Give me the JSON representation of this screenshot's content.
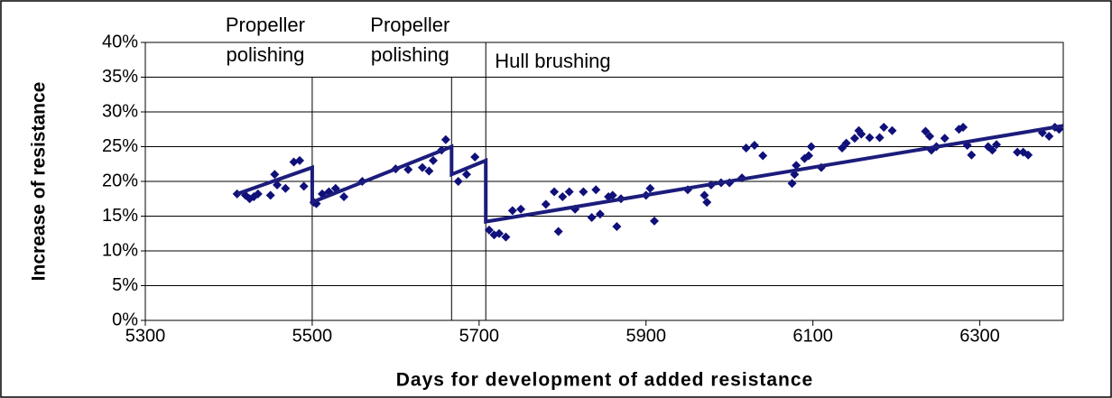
{
  "chart_data": {
    "type": "scatter",
    "xlabel": "Days for development of added resistance",
    "ylabel": "Increase of resistance",
    "xlim": [
      5300,
      6400
    ],
    "xticks": [
      5300,
      5500,
      5700,
      5900,
      6100,
      6300
    ],
    "ylim": [
      0,
      40
    ],
    "yticks": [
      {
        "value": 0,
        "label": "0%"
      },
      {
        "value": 5,
        "label": "5%"
      },
      {
        "value": 10,
        "label": "10%"
      },
      {
        "value": 15,
        "label": "15%"
      },
      {
        "value": 20,
        "label": "20%"
      },
      {
        "value": 25,
        "label": "25%"
      },
      {
        "value": 30,
        "label": "30%"
      },
      {
        "value": 35,
        "label": "35%"
      },
      {
        "value": 40,
        "label": "40%"
      }
    ],
    "grid": true,
    "points": {
      "color": "#10107a",
      "x": [
        5410,
        5420,
        5425,
        5430,
        5435,
        5450,
        5455,
        5458,
        5468,
        5478,
        5485,
        5490,
        5502,
        5505,
        5512,
        5520,
        5528,
        5538,
        5560,
        5600,
        5615,
        5632,
        5640,
        5645,
        5655,
        5660,
        5675,
        5685,
        5695,
        5712,
        5718,
        5724,
        5732,
        5740,
        5750,
        5780,
        5790,
        5795,
        5800,
        5808,
        5815,
        5825,
        5835,
        5840,
        5845,
        5855,
        5860,
        5865,
        5870,
        5900,
        5905,
        5910,
        5950,
        5970,
        5973,
        5978,
        5990,
        6000,
        6015,
        6020,
        6030,
        6040,
        6075,
        6078,
        6080,
        6090,
        6095,
        6098,
        6110,
        6135,
        6140,
        6150,
        6155,
        6158,
        6168,
        6180,
        6185,
        6195,
        6235,
        6240,
        6242,
        6248,
        6258,
        6275,
        6280,
        6285,
        6290,
        6310,
        6315,
        6320,
        6345,
        6352,
        6358,
        6375,
        6383,
        6390,
        6395
      ],
      "values": [
        18.2,
        18,
        17.5,
        17.8,
        18.2,
        18,
        21,
        19.5,
        19,
        22.8,
        23,
        19.3,
        17,
        16.8,
        18.2,
        18.5,
        19,
        17.8,
        20,
        21.8,
        21.7,
        22,
        21.5,
        23,
        24.5,
        26,
        20,
        21,
        23.5,
        13,
        12.3,
        12.5,
        12,
        15.8,
        16,
        16.7,
        18.5,
        12.8,
        17.8,
        18.5,
        16,
        18.5,
        14.8,
        18.8,
        15.3,
        17.8,
        18,
        13.5,
        17.5,
        18,
        19,
        14.3,
        18.8,
        18,
        17,
        19.5,
        19.8,
        19.8,
        20.5,
        24.8,
        25.2,
        23.7,
        19.7,
        21,
        22.3,
        23.3,
        23.7,
        25,
        22,
        24.8,
        25.5,
        26.2,
        27.3,
        26.8,
        26.3,
        26.3,
        27.8,
        27.3,
        27.2,
        26.5,
        24.5,
        25,
        26.2,
        27.5,
        27.8,
        25.2,
        23.8,
        25,
        24.5,
        25.3,
        24.2,
        24.2,
        23.8,
        27,
        26.5,
        27.8,
        27.5
      ]
    },
    "trend": {
      "color": "#1c1c7c",
      "x": [
        5410,
        5500,
        5500,
        5667,
        5667,
        5708,
        5708,
        6400
      ],
      "values": [
        18.2,
        22,
        17,
        25,
        21,
        23,
        14.2,
        28
      ]
    },
    "events": [
      {
        "x": 5500,
        "label": [
          "Propeller",
          "polishing"
        ]
      },
      {
        "x": 5667,
        "label": [
          "Propeller",
          "polishing"
        ]
      },
      {
        "x": 5708,
        "label": [
          "Hull brushing"
        ]
      }
    ]
  }
}
